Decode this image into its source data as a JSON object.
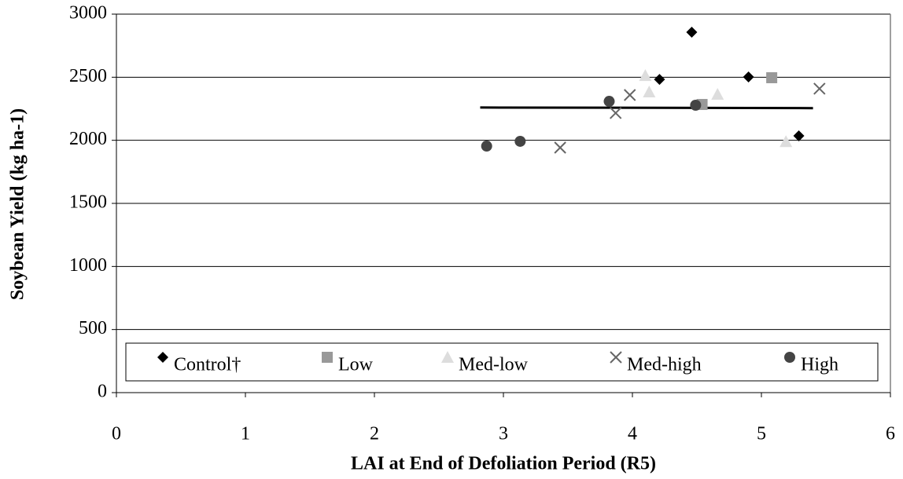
{
  "chart_data": {
    "type": "scatter",
    "x_label": "LAI at End of Defoliation Period (R5)",
    "y_label": "Soybean Yield (kg ha-1)",
    "xlim": [
      0,
      6
    ],
    "xticks": [
      0,
      1,
      2,
      3,
      4,
      5,
      6
    ],
    "ylim": [
      0,
      3000
    ],
    "yticks": [
      0,
      500,
      1000,
      1500,
      2000,
      2500,
      3000
    ],
    "grid": true,
    "legend": "bottom",
    "series": [
      {
        "name": "Control†",
        "color": "#000000",
        "marker": "diamond",
        "x": [
          4.46,
          4.21,
          4.9,
          5.29
        ],
        "values": [
          2857,
          2483,
          2502,
          2035
        ]
      },
      {
        "name": "Low",
        "color": "#999999",
        "marker": "square",
        "x": [
          5.08,
          4.54
        ],
        "values": [
          2496,
          2284
        ]
      },
      {
        "name": "Med-low",
        "color": "#dddddd",
        "marker": "triangle",
        "x": [
          4.1,
          4.13,
          4.66,
          5.19
        ],
        "values": [
          2514,
          2384,
          2365,
          1990
        ]
      },
      {
        "name": "Med-high",
        "color": "#666666",
        "marker": "cross",
        "x": [
          3.44,
          3.87,
          3.98,
          5.45
        ],
        "values": [
          1942,
          2216,
          2359,
          2409
        ]
      },
      {
        "name": "High",
        "color": "#444444",
        "marker": "circle",
        "x": [
          2.87,
          3.13,
          3.82,
          4.49
        ],
        "values": [
          1954,
          1992,
          2309,
          2278
        ]
      }
    ],
    "trendline": {
      "color": "#000000",
      "x": [
        2.82,
        5.4
      ],
      "values": [
        2260,
        2255
      ]
    }
  }
}
